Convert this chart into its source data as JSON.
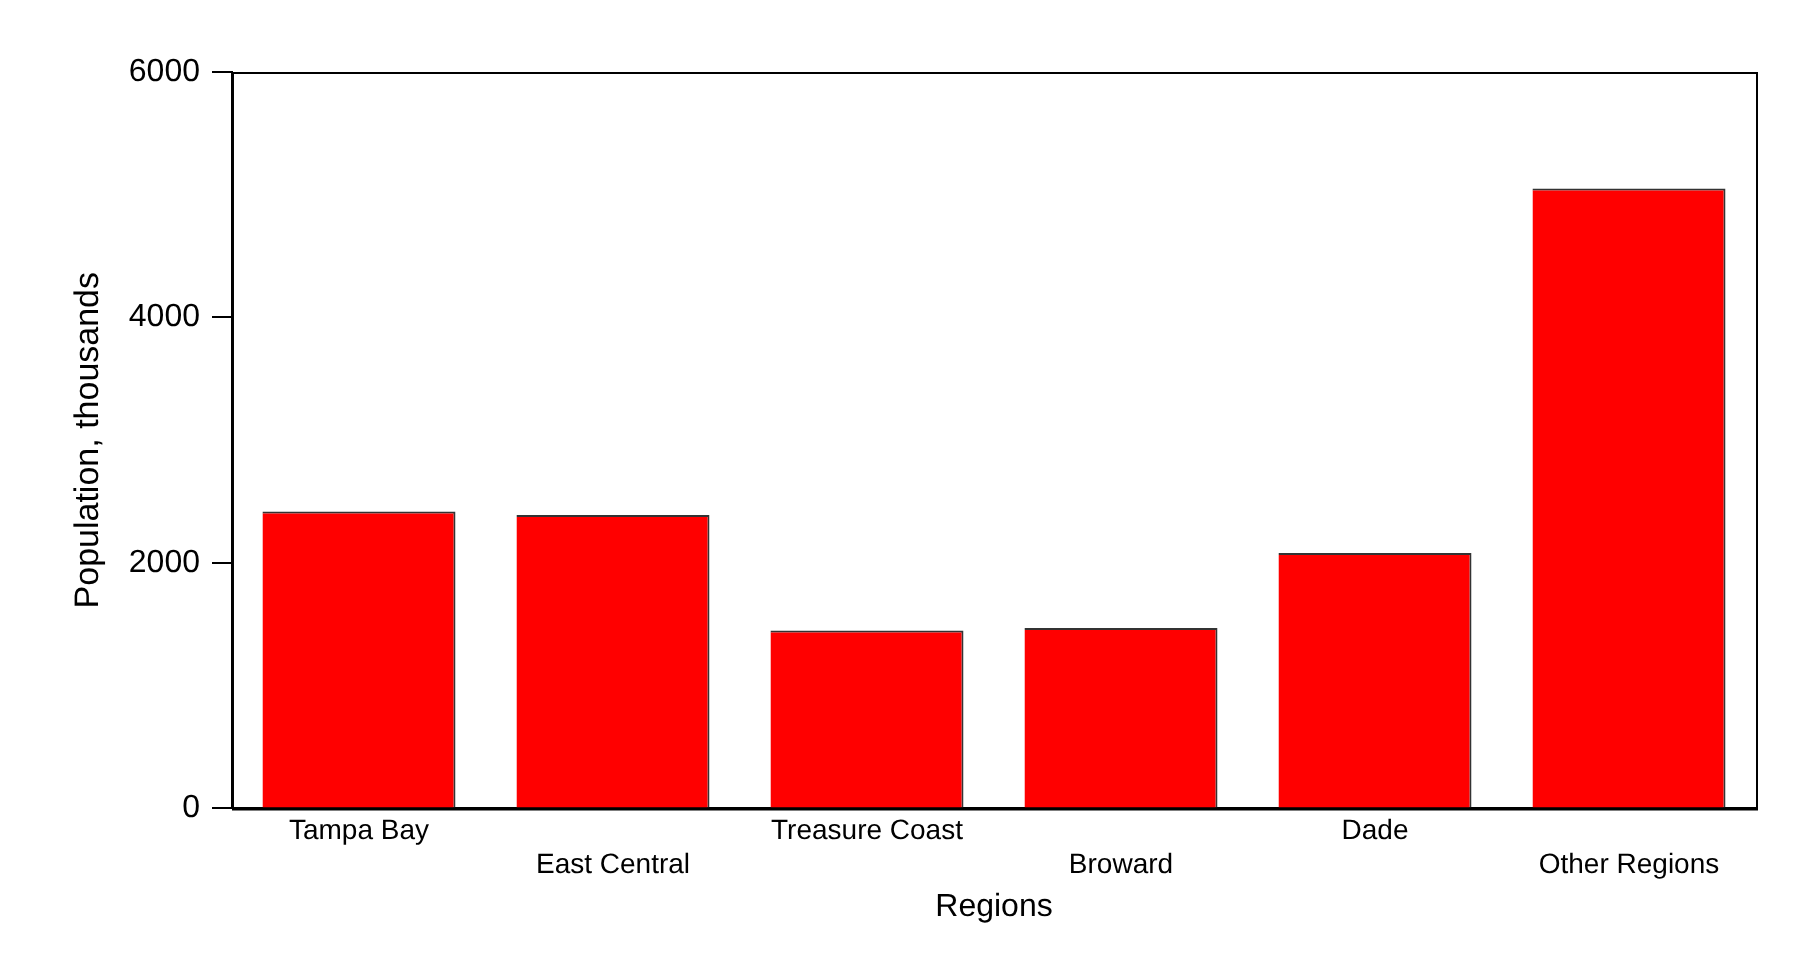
{
  "chart_data": {
    "type": "bar",
    "xlabel": "Regions",
    "ylabel": "Population, thousands",
    "categories": [
      "Tampa Bay",
      "East Central",
      "Treasure Coast",
      "Broward",
      "Dade",
      "Other Regions"
    ],
    "values": [
      2420,
      2390,
      1450,
      1470,
      2080,
      5050
    ],
    "color": "#ff0000",
    "ylim": [
      0,
      6000
    ],
    "yticks": [
      0,
      2000,
      4000,
      6000
    ],
    "grid": false
  }
}
